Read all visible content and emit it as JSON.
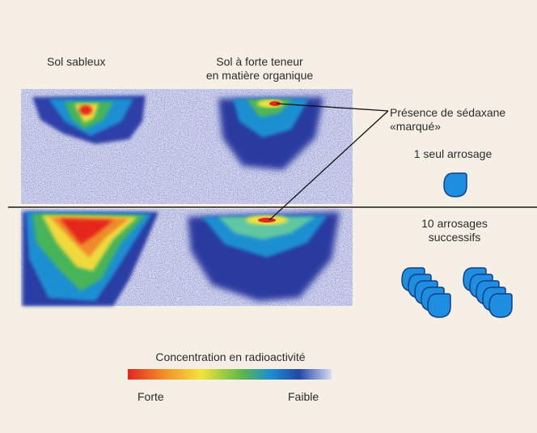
{
  "column_labels": {
    "sandy": "Sol sableux",
    "organic_line1": "Sol à forte teneur",
    "organic_line2": "en matière organique"
  },
  "annotations": {
    "presence_line1": "Présence de sédaxane",
    "presence_line2": "«marqué»",
    "one_watering": "1 seul arrosage",
    "ten_line1": "10 arrosages",
    "ten_line2": "successifs"
  },
  "legend": {
    "title": "Concentration en radioactivité",
    "strong": "Forte",
    "weak": "Faible"
  },
  "colors": {
    "background": "#f6efe5",
    "droplet_fill": "#1e8fe0",
    "droplet_stroke": "#123f86",
    "noise_dark": "#2a2f8f",
    "noise_light": "#c9cde8"
  }
}
